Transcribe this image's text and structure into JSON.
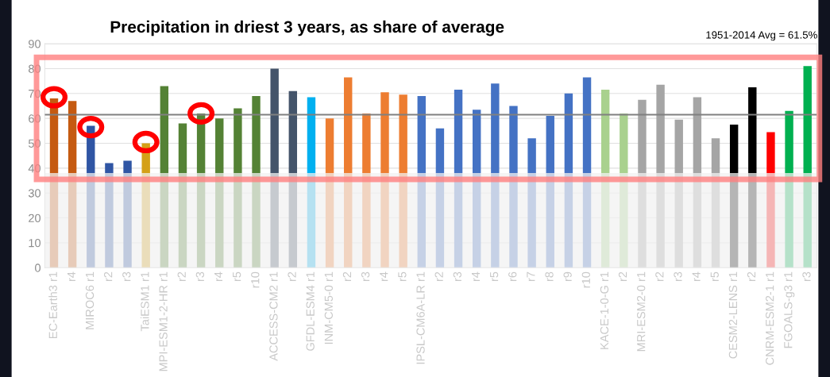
{
  "chart_data": {
    "type": "bar",
    "title": "Precipitation in driest 3 years, as share of average",
    "categories": [
      "EC-Earth3 r1",
      "r4",
      "MIROC6 r1",
      "r2",
      "r3",
      "TaiESM1 r1",
      "MPI-ESM1-2-HR r1",
      "r2",
      "r3",
      "r4",
      "r5",
      "r10",
      "ACCESS-CM2 r1",
      "r2",
      "GFDL-ESM4 r1",
      "INM-CM5-0 r1",
      "r2",
      "r3",
      "r4",
      "r5",
      "IPSL-CM6A-LR r1",
      "r2",
      "r3",
      "r4",
      "r5",
      "r6",
      "r7",
      "r8",
      "r9",
      "r10",
      "KACE-1-0-G r1",
      "r2",
      "MRI-ESM2-0 r1",
      "r2",
      "r3",
      "r4",
      "r5",
      "CESM2-LENS r1",
      "r2",
      "CNRM-ESM2-1 r1",
      "FGOALS-g3 r1",
      "r3"
    ],
    "values": [
      68,
      67,
      57,
      42,
      43,
      50,
      73,
      58,
      62,
      60,
      64,
      69,
      80,
      71,
      68.5,
      60,
      76.5,
      62,
      70.5,
      69.5,
      69,
      56,
      71.5,
      63.5,
      74,
      65,
      52,
      61,
      70,
      76.5,
      71.5,
      62,
      67.5,
      73.5,
      59.5,
      68.5,
      52,
      57.5,
      72.5,
      54.5,
      63,
      81
    ],
    "colors": [
      "#c55a11",
      "#c55a11",
      "#2f55a4",
      "#2f55a4",
      "#2f55a4",
      "#d4a017",
      "#548235",
      "#548235",
      "#548235",
      "#548235",
      "#548235",
      "#548235",
      "#44546a",
      "#44546a",
      "#00b0f0",
      "#ed7d31",
      "#ed7d31",
      "#ed7d31",
      "#ed7d31",
      "#ed7d31",
      "#4472c4",
      "#4472c4",
      "#4472c4",
      "#4472c4",
      "#4472c4",
      "#4472c4",
      "#4472c4",
      "#4472c4",
      "#4472c4",
      "#4472c4",
      "#a9d18e",
      "#a9d18e",
      "#a5a5a5",
      "#a5a5a5",
      "#a5a5a5",
      "#a5a5a5",
      "#a5a5a5",
      "#000000",
      "#000000",
      "#ff0000",
      "#00b050",
      "#00b050"
    ],
    "ylim": [
      0,
      90
    ],
    "yticks": [
      0,
      10,
      20,
      30,
      40,
      50,
      60,
      70,
      80,
      90
    ],
    "grid": "y",
    "ref_lines": [
      {
        "axis": "y",
        "value": 61.5,
        "color": "#808080"
      }
    ],
    "annotations": [
      "1951-2014 Avg = 61.5%"
    ],
    "bands": [
      {
        "axis": "y",
        "from": 0,
        "to": 38,
        "color": "#f2f2f2"
      }
    ]
  }
}
